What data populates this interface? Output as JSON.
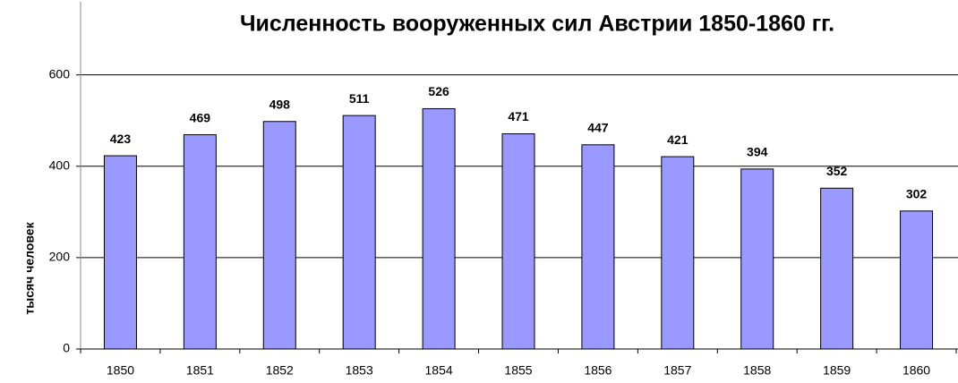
{
  "chart_data": {
    "type": "bar",
    "title": "Численность вооруженных сил Австрии 1850-1860 гг.",
    "y_label": "тысяч человек",
    "categories": [
      "1850",
      "1851",
      "1852",
      "1853",
      "1854",
      "1855",
      "1856",
      "1857",
      "1858",
      "1859",
      "1860"
    ],
    "values": [
      423,
      469,
      498,
      511,
      526,
      471,
      447,
      421,
      394,
      352,
      302
    ],
    "color": "#9999ff",
    "ylim": [
      0,
      760
    ],
    "yticks": [
      0,
      200,
      400,
      600
    ],
    "grid": true
  }
}
